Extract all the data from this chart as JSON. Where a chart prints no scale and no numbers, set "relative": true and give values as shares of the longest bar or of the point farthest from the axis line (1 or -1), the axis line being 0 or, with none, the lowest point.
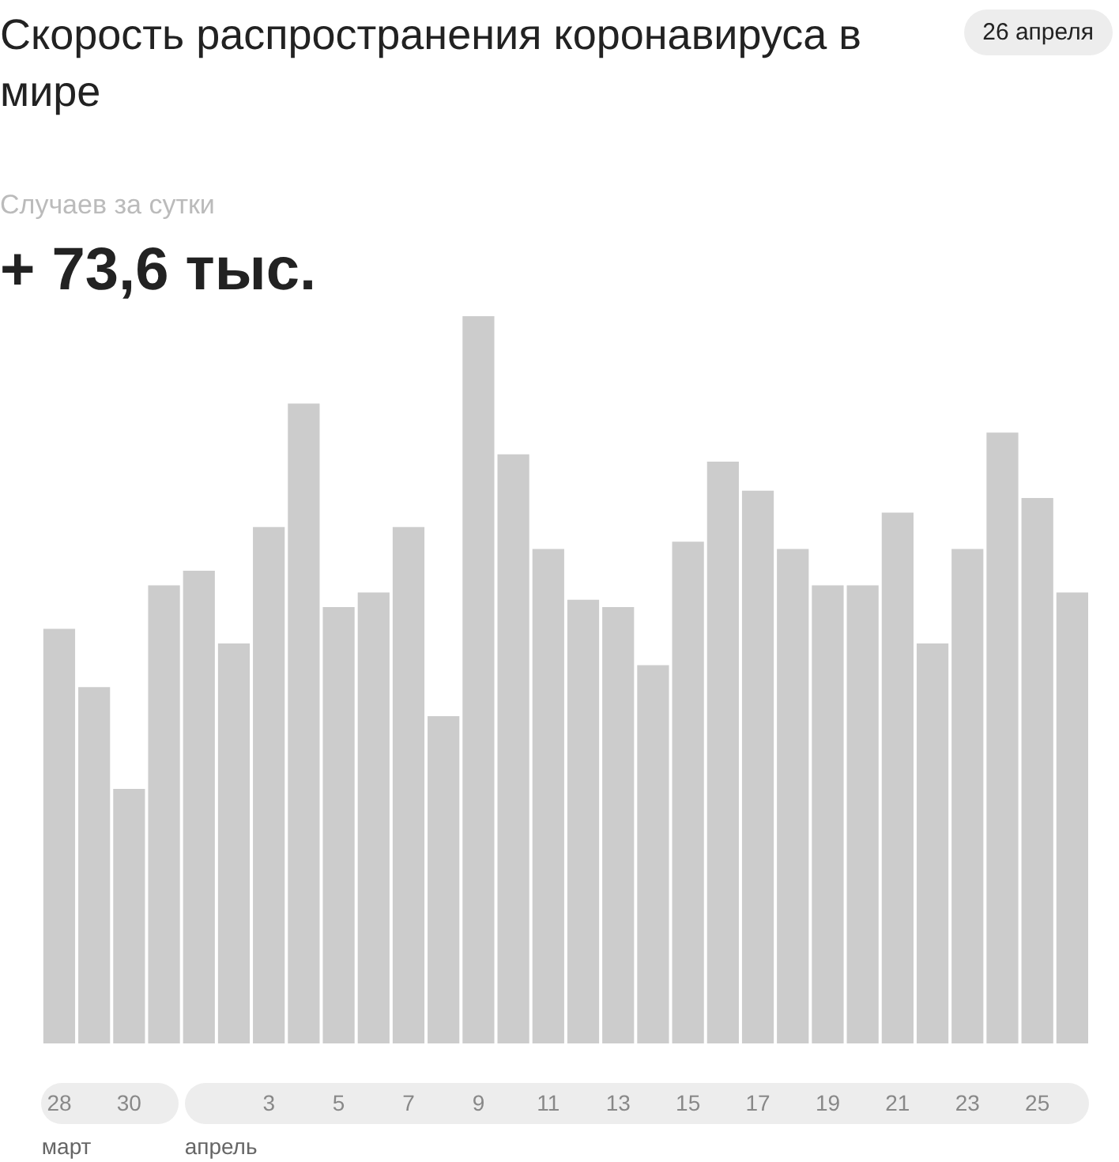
{
  "chart_data": {
    "type": "bar",
    "title": "Скорость распространения коронавируса в мире",
    "subtitle": "Случаев за сутки",
    "relative": true,
    "categories": [
      "28",
      null,
      "30",
      null,
      null,
      null,
      "3",
      null,
      "5",
      null,
      "7",
      null,
      "9",
      null,
      "11",
      null,
      "13",
      null,
      "15",
      null,
      "17",
      null,
      "19",
      null,
      "21",
      null,
      "23",
      null,
      "25",
      null
    ],
    "values": [
      0.57,
      0.49,
      0.35,
      0.63,
      0.65,
      0.55,
      0.71,
      0.88,
      0.6,
      0.62,
      0.71,
      0.45,
      1,
      0.81,
      0.68,
      0.61,
      0.6,
      0.52,
      0.69,
      0.8,
      0.76,
      0.68,
      0.63,
      0.63,
      0.73,
      0.55,
      0.68,
      0.84,
      0.75,
      0.62
    ],
    "color": "#cccccc",
    "grid": false,
    "legend": false,
    "annotations": [
      "+ 73,6 тыс.",
      "26 апреля",
      "март",
      "апрель"
    ]
  }
}
